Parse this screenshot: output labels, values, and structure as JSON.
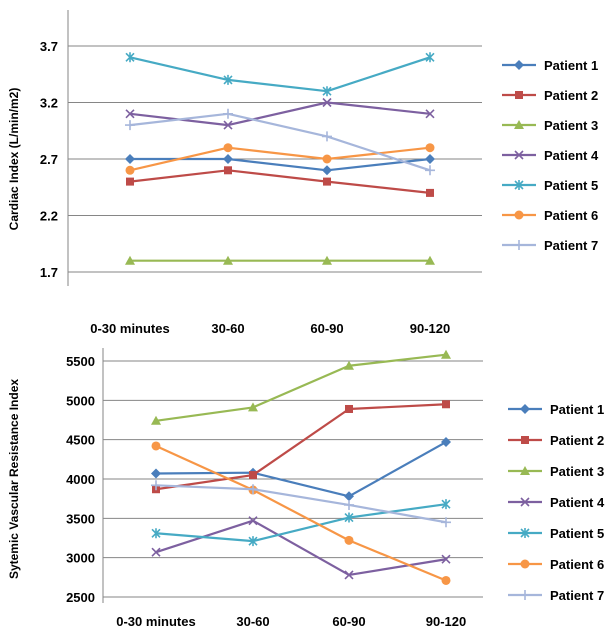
{
  "chart_data": [
    {
      "type": "line",
      "title": "",
      "xlabel": "",
      "ylabel": "Cardiac Index (L/min/m2)",
      "categories": [
        "0-30 minutes",
        "30-60",
        "60-90",
        "90-120"
      ],
      "ylim": [
        1.7,
        3.7
      ],
      "yticks": [
        "1.7",
        "2.2",
        "2.7",
        "3.2",
        "3.7"
      ],
      "grid": "horizontal",
      "legend_position": "right",
      "series": [
        {
          "name": "Patient 1",
          "color": "#4A7EBB",
          "marker": "diamond",
          "values": [
            2.7,
            2.7,
            2.6,
            2.7
          ]
        },
        {
          "name": "Patient 2",
          "color": "#BE4B48",
          "marker": "square",
          "values": [
            2.5,
            2.6,
            2.5,
            2.4
          ]
        },
        {
          "name": "Patient 3",
          "color": "#98B954",
          "marker": "triangle",
          "values": [
            1.8,
            1.8,
            1.8,
            1.8
          ]
        },
        {
          "name": "Patient 4",
          "color": "#7D60A0",
          "marker": "x",
          "values": [
            3.1,
            3.0,
            3.2,
            3.1
          ]
        },
        {
          "name": "Patient 5",
          "color": "#46AAC4",
          "marker": "star",
          "values": [
            3.6,
            3.4,
            3.3,
            3.6
          ]
        },
        {
          "name": "Patient 6",
          "color": "#F79646",
          "marker": "circle",
          "values": [
            2.6,
            2.8,
            2.7,
            2.8
          ]
        },
        {
          "name": "Patient 7",
          "color": "#A6B6DB",
          "marker": "plus",
          "values": [
            3.0,
            3.1,
            2.9,
            2.6
          ]
        }
      ]
    },
    {
      "type": "line",
      "title": "",
      "xlabel": "",
      "ylabel": "Sytemic Vascular Resistance Index",
      "categories": [
        "0-30 minutes",
        "30-60",
        "60-90",
        "90-120"
      ],
      "ylim": [
        2500,
        5500
      ],
      "yticks": [
        "2500",
        "3000",
        "3500",
        "4000",
        "4500",
        "5000",
        "5500"
      ],
      "grid": "horizontal",
      "legend_position": "right",
      "series": [
        {
          "name": "Patient 1",
          "color": "#4A7EBB",
          "marker": "diamond",
          "values": [
            4070,
            4080,
            3780,
            4470
          ]
        },
        {
          "name": "Patient 2",
          "color": "#BE4B48",
          "marker": "square",
          "values": [
            3870,
            4050,
            4890,
            4950
          ]
        },
        {
          "name": "Patient 3",
          "color": "#98B954",
          "marker": "triangle",
          "values": [
            4740,
            4910,
            5440,
            5580
          ]
        },
        {
          "name": "Patient 4",
          "color": "#7D60A0",
          "marker": "x",
          "values": [
            3070,
            3470,
            2780,
            2980
          ]
        },
        {
          "name": "Patient 5",
          "color": "#46AAC4",
          "marker": "star",
          "values": [
            3310,
            3210,
            3510,
            3680
          ]
        },
        {
          "name": "Patient 6",
          "color": "#F79646",
          "marker": "circle",
          "values": [
            4420,
            3860,
            3220,
            2710
          ]
        },
        {
          "name": "Patient 7",
          "color": "#A6B6DB",
          "marker": "plus",
          "values": [
            3920,
            3870,
            3670,
            3450
          ]
        }
      ]
    }
  ]
}
